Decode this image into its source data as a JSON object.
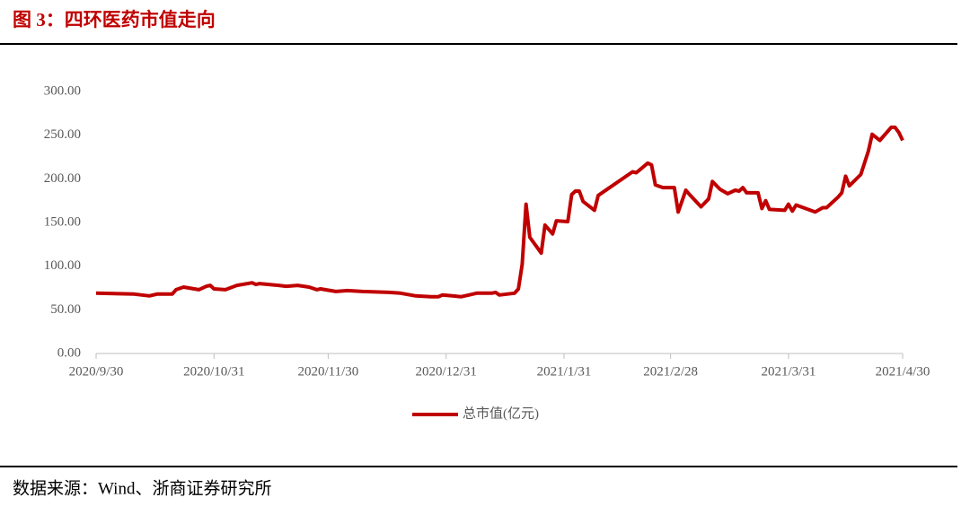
{
  "header": {
    "title": "图 3：四环医药市值走向"
  },
  "chart_data": {
    "type": "line",
    "x": [
      "2020/9/30",
      "2020/10/10",
      "2020/10/14",
      "2020/10/16",
      "2020/10/20",
      "2020/10/21",
      "2020/10/23",
      "2020/10/27",
      "2020/10/29",
      "2020/10/30",
      "2020/10/31",
      "2020/11/3",
      "2020/11/6",
      "2020/11/10",
      "2020/11/11",
      "2020/11/12",
      "2020/11/17",
      "2020/11/19",
      "2020/11/22",
      "2020/11/25",
      "2020/11/27",
      "2020/11/28",
      "2020/12/2",
      "2020/12/5",
      "2020/12/9",
      "2020/12/16",
      "2020/12/19",
      "2020/12/23",
      "2020/12/27",
      "2020/12/29",
      "2020/12/30",
      "2021/1/4",
      "2021/1/6",
      "2021/1/8",
      "2021/1/12",
      "2021/1/13",
      "2021/1/14",
      "2021/1/18",
      "2021/1/19",
      "2021/1/20",
      "2021/1/21",
      "2021/1/22",
      "2021/1/25",
      "2021/1/26",
      "2021/1/28",
      "2021/1/29",
      "2021/2/1",
      "2021/2/2",
      "2021/2/3",
      "2021/2/4",
      "2021/2/5",
      "2021/2/8",
      "2021/2/9",
      "2021/2/18",
      "2021/2/19",
      "2021/2/22",
      "2021/2/23",
      "2021/2/24",
      "2021/2/26",
      "2021/3/1",
      "2021/3/2",
      "2021/3/4",
      "2021/3/5",
      "2021/3/8",
      "2021/3/10",
      "2021/3/11",
      "2021/3/13",
      "2021/3/15",
      "2021/3/17",
      "2021/3/18",
      "2021/3/19",
      "2021/3/20",
      "2021/3/23",
      "2021/3/24",
      "2021/3/25",
      "2021/3/26",
      "2021/3/30",
      "2021/3/31",
      "2021/4/1",
      "2021/4/2",
      "2021/4/7",
      "2021/4/9",
      "2021/4/10",
      "2021/4/13",
      "2021/4/14",
      "2021/4/15",
      "2021/4/16",
      "2021/4/19",
      "2021/4/21",
      "2021/4/22",
      "2021/4/24",
      "2021/4/27",
      "2021/4/28",
      "2021/4/29",
      "2021/4/30"
    ],
    "series": [
      {
        "name": "总市值(亿元)",
        "color": "#c00000",
        "values": [
          69,
          68,
          66,
          68,
          68,
          73,
          76,
          73,
          77,
          78,
          74,
          73,
          78,
          81,
          79,
          80,
          78,
          77,
          78,
          76,
          73,
          74,
          71,
          72,
          71,
          70,
          69,
          66,
          65,
          65,
          67,
          65,
          67,
          69,
          69,
          70,
          67,
          69,
          74,
          102,
          171,
          133,
          115,
          147,
          137,
          152,
          151,
          182,
          186,
          186,
          174,
          164,
          181,
          208,
          207,
          218,
          216,
          193,
          190,
          190,
          162,
          187,
          182,
          168,
          177,
          197,
          188,
          183,
          187,
          186,
          190,
          184,
          184,
          166,
          175,
          165,
          164,
          171,
          163,
          170,
          162,
          167,
          167,
          179,
          184,
          203,
          192,
          205,
          232,
          251,
          244,
          259,
          259,
          253,
          244
        ]
      }
    ],
    "xlim": [
      "2020/9/30",
      "2021/4/30"
    ],
    "xticks": [
      "2020/9/30",
      "2020/10/31",
      "2020/11/30",
      "2020/12/31",
      "2021/1/31",
      "2021/2/28",
      "2021/3/31",
      "2021/4/30"
    ],
    "ylim": [
      0,
      300
    ],
    "yticks": [
      {
        "value": 0,
        "label": "0.00"
      },
      {
        "value": 50,
        "label": "50.00"
      },
      {
        "value": 100,
        "label": "100.00"
      },
      {
        "value": 150,
        "label": "150.00"
      },
      {
        "value": 200,
        "label": "200.00"
      },
      {
        "value": 250,
        "label": "250.00"
      },
      {
        "value": 300,
        "label": "300.00"
      }
    ],
    "legend": "bottom"
  },
  "footer": {
    "source": "数据来源：Wind、浙商证券研究所"
  }
}
